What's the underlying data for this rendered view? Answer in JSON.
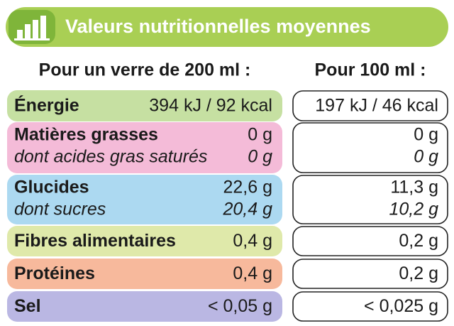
{
  "header": {
    "title": "Valeurs nutritionnelles moyennes"
  },
  "columns": [
    "Pour un verre de 200 ml :",
    "Pour 100 ml :"
  ],
  "rows": [
    {
      "label": "Énergie",
      "per_glass": "394 kJ / 92 kcal",
      "per_100ml": "197 kJ / 46 kcal"
    },
    {
      "label": "Matières grasses",
      "per_glass": "0 g",
      "per_100ml": "0 g",
      "sub": {
        "label": "dont acides gras saturés",
        "per_glass": "0 g",
        "per_100ml": "0 g"
      }
    },
    {
      "label": "Glucides",
      "per_glass": "22,6 g",
      "per_100ml": "11,3 g",
      "sub": {
        "label": "dont sucres",
        "per_glass": "20,4 g",
        "per_100ml": "10,2 g"
      }
    },
    {
      "label": "Fibres alimentaires",
      "per_glass": "0,4 g",
      "per_100ml": "0,2 g"
    },
    {
      "label": "Protéines",
      "per_glass": "0,4 g",
      "per_100ml": "0,2 g"
    },
    {
      "label": "Sel",
      "per_glass": "< 0,05 g",
      "per_100ml": "< 0,025 g"
    }
  ]
}
